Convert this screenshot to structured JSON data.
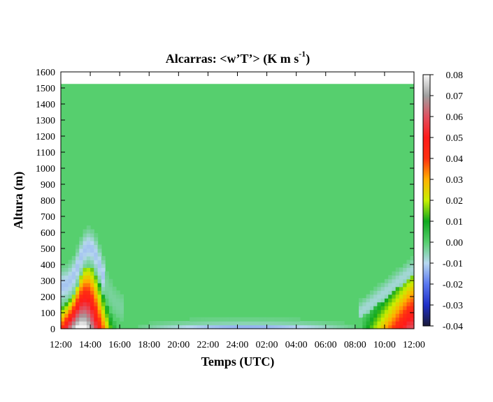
{
  "chart_data": {
    "type": "heatmap",
    "title": {
      "main": "Alcarras: <w’T’> (K m s",
      "superscript": "-1",
      "closing": ")"
    },
    "xlabel": "Temps (UTC)",
    "ylabel": "Altura (m)",
    "x_ticks": [
      "12:00",
      "14:00",
      "16:00",
      "18:00",
      "20:00",
      "22:00",
      "24:00",
      "02:00",
      "04:00",
      "06:00",
      "08:00",
      "10:00",
      "12:00"
    ],
    "x_range_hours": [
      0,
      24
    ],
    "y_ticks": [
      0,
      100,
      200,
      300,
      400,
      500,
      600,
      700,
      800,
      900,
      1000,
      1100,
      1200,
      1300,
      1400,
      1500,
      1600
    ],
    "ylim": [
      0,
      1600
    ],
    "data_top_m": 1525,
    "colorbar": {
      "ticks": [
        "0.08",
        "0.07",
        "0.06",
        "0.05",
        "0.04",
        "0.03",
        "0.02",
        "0.01",
        "0.00",
        "-0.01",
        "-0.02",
        "-0.03",
        "-0.04"
      ],
      "range": [
        -0.04,
        0.08
      ],
      "stops": [
        {
          "v": -0.04,
          "color": "#1a1a3a"
        },
        {
          "v": -0.03,
          "color": "#2030c8"
        },
        {
          "v": -0.02,
          "color": "#5a78f0"
        },
        {
          "v": -0.01,
          "color": "#b8d8f0"
        },
        {
          "v": 0.0,
          "color": "#56cf6e"
        },
        {
          "v": 0.01,
          "color": "#0fa81e"
        },
        {
          "v": 0.02,
          "color": "#c8f000"
        },
        {
          "v": 0.03,
          "color": "#ffb000"
        },
        {
          "v": 0.04,
          "color": "#ff3010"
        },
        {
          "v": 0.05,
          "color": "#ff1a1a"
        },
        {
          "v": 0.06,
          "color": "#e05060"
        },
        {
          "v": 0.07,
          "color": "#a0a0a0"
        },
        {
          "v": 0.08,
          "color": "#f8f8f8"
        }
      ]
    }
  }
}
